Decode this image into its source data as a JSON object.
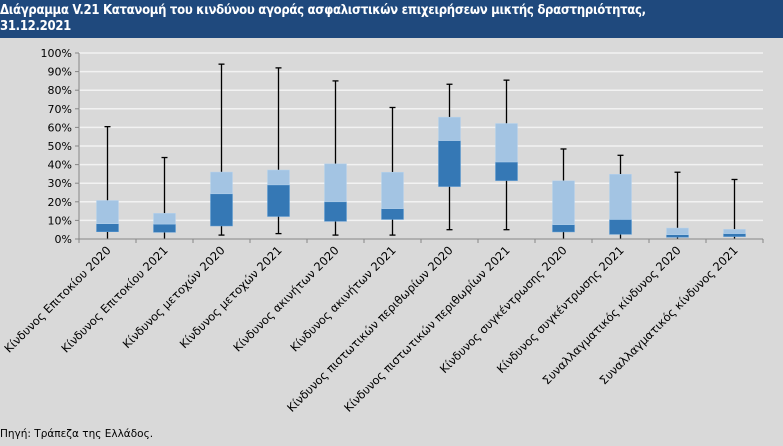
{
  "title": {
    "line1": "Διάγραμμα V.21 Κατανομή του κινδύνου αγοράς ασφαλιστικών επιχειρήσεων μικτής δραστηριότητας,",
    "line2": "31.12.2021"
  },
  "source": "Πηγή: Τράπεζα της Ελλάδος.",
  "colors": {
    "lower_box": "#3578b5",
    "upper_box": "#a3c4e3",
    "whisker": "#000000",
    "grid": "#f2f2f2",
    "background": "#d9d9d9",
    "title_bg": "#1f497d"
  },
  "chart_data": {
    "type": "boxplot",
    "ylim": [
      0,
      100
    ],
    "yticks": [
      "0%",
      "10%",
      "20%",
      "30%",
      "40%",
      "50%",
      "60%",
      "70%",
      "80%",
      "90%",
      "100%"
    ],
    "grid": true,
    "categories": [
      "Κίνδυνος Επιτοκίου 2020",
      "Κίνδυνος Επιτοκίου 2021",
      "Κίνδυνος μετοχών 2020",
      "Κίνδυνος μετοχών 2021",
      "Κίνδυνος ακινήτων 2020",
      "Κίνδυνος ακινήτων 2021",
      "Κίνδυνος πιστωτικών περιθωρίων 2020",
      "Κίνδυνος πιστωτικών περιθωρίων 2021",
      "Κίνδυνος συγκέντρωσης 2020",
      "Κίνδυνος συγκέντρωσης 2021",
      "Συναλλαγματικός κίνδυνος 2020",
      "Συναλλαγματικός κίνδυνος 2021"
    ],
    "boxes": [
      {
        "min": 0,
        "q1": 3.9,
        "median": 8.2,
        "q3": 20.7,
        "max": 60.4
      },
      {
        "min": 0,
        "q1": 3.6,
        "median": 8.0,
        "q3": 13.8,
        "max": 43.8
      },
      {
        "min": 2.1,
        "q1": 7.0,
        "median": 24.3,
        "q3": 36.0,
        "max": 94.0
      },
      {
        "min": 2.9,
        "q1": 12.1,
        "median": 29.1,
        "q3": 37.1,
        "max": 92.0
      },
      {
        "min": 2.1,
        "q1": 9.5,
        "median": 20.0,
        "q3": 40.4,
        "max": 85.0
      },
      {
        "min": 2.1,
        "q1": 10.5,
        "median": 16.3,
        "q3": 35.9,
        "max": 70.7
      },
      {
        "min": 5.0,
        "q1": 28.2,
        "median": 52.9,
        "q3": 65.5,
        "max": 83.2
      },
      {
        "min": 5.0,
        "q1": 31.4,
        "median": 41.4,
        "q3": 62.1,
        "max": 85.4
      },
      {
        "min": 0,
        "q1": 3.8,
        "median": 7.7,
        "q3": 31.3,
        "max": 48.4
      },
      {
        "min": 0,
        "q1": 2.5,
        "median": 10.5,
        "q3": 34.8,
        "max": 45.0
      },
      {
        "min": 0,
        "q1": 0.9,
        "median": 2.3,
        "q3": 5.9,
        "max": 35.9
      },
      {
        "min": 0,
        "q1": 1.3,
        "median": 2.9,
        "q3": 5.2,
        "max": 32.0
      }
    ]
  }
}
